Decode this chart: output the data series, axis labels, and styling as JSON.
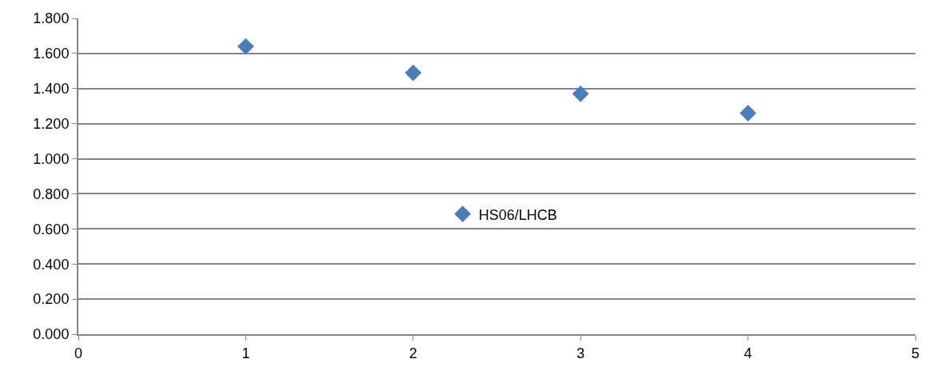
{
  "chart_data": {
    "type": "scatter",
    "x": [
      1,
      2,
      3,
      4
    ],
    "series": [
      {
        "name": "HS06/LHCB",
        "color": "#4a7ebb",
        "values": [
          1.64,
          1.49,
          1.37,
          1.26
        ]
      }
    ],
    "xlim": [
      0,
      5
    ],
    "xticks": [
      0,
      1,
      2,
      3,
      4,
      5
    ],
    "ylim": [
      0,
      1.8
    ],
    "yticks": [
      {
        "value": 0,
        "label": "0.000"
      },
      {
        "value": 0.2,
        "label": "0.200"
      },
      {
        "value": 0.4,
        "label": "0.400"
      },
      {
        "value": 0.6,
        "label": "0.600"
      },
      {
        "value": 0.8,
        "label": "0.800"
      },
      {
        "value": 1.0,
        "label": "1.000"
      },
      {
        "value": 1.2,
        "label": "1.200"
      },
      {
        "value": 1.4,
        "label": "1.400"
      },
      {
        "value": 1.6,
        "label": "1.600"
      },
      {
        "value": 1.8,
        "label": "1.800"
      }
    ],
    "grid": "y",
    "legend": "center",
    "marker": "diamond"
  }
}
